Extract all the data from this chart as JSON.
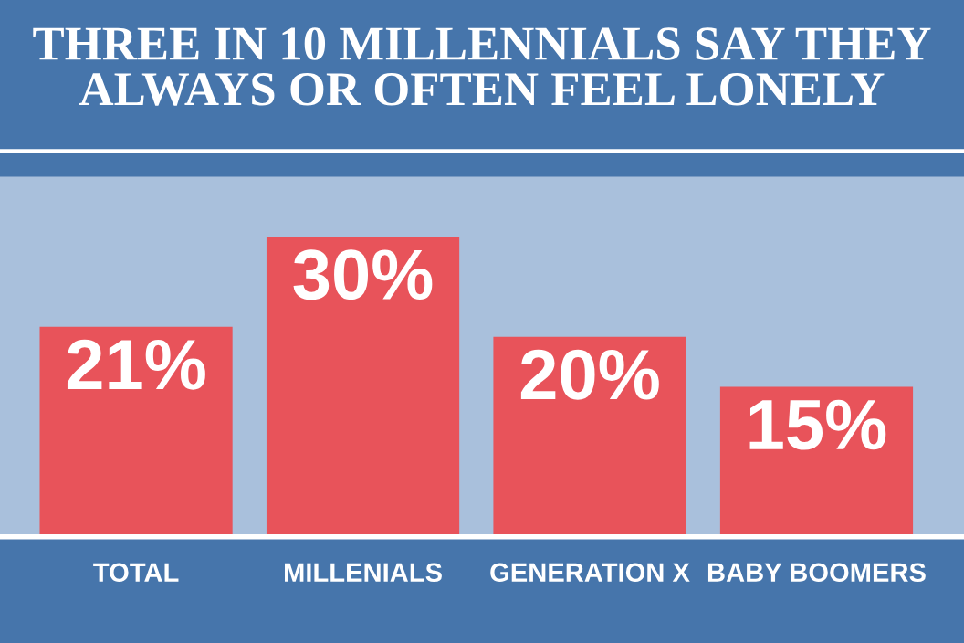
{
  "chart_data": {
    "type": "bar",
    "title": "THREE IN 10 MILLENNIALS SAY THEY\nALWAYS OR OFTEN FEEL LONELY",
    "categories": [
      "TOTAL",
      "MILLENIALS",
      "GENERATION X",
      "BABY BOOMERS"
    ],
    "values": [
      21,
      30,
      20,
      15
    ],
    "value_labels": [
      "21%",
      "30%",
      "20%",
      "15%"
    ],
    "color": "#e8535a",
    "ylim": [
      0,
      36
    ],
    "grid": false,
    "legend": false
  }
}
